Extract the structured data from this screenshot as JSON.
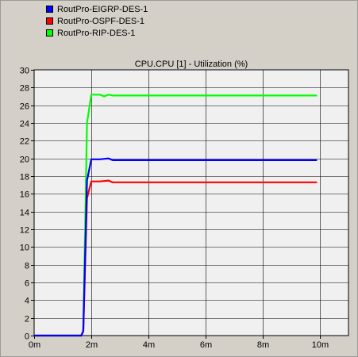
{
  "chart_data": {
    "type": "line",
    "title": "CPU.CPU [1] - Utilization (%)",
    "xlabel": "",
    "ylabel": "",
    "xlim": [
      0,
      11
    ],
    "ylim": [
      0,
      30
    ],
    "x_ticks": [
      0,
      2,
      4,
      6,
      8,
      10
    ],
    "x_tick_labels": [
      "0m",
      "2m",
      "4m",
      "6m",
      "8m",
      "10m"
    ],
    "y_ticks": [
      0,
      2,
      4,
      6,
      8,
      10,
      12,
      14,
      16,
      18,
      20,
      22,
      24,
      26,
      28,
      30
    ],
    "y_tick_labels": [
      "0",
      "2",
      "4",
      "6",
      "8",
      "10",
      "12",
      "14",
      "16",
      "18",
      "20",
      "22",
      "24",
      "26",
      "28",
      "30"
    ],
    "grid": true,
    "legend_position": "top-left, above plot",
    "series": [
      {
        "name": "RoutPro-EIGRP-DES-1",
        "color": "#0000ff",
        "x": [
          0,
          1.65,
          1.72,
          1.85,
          2.0,
          2.3,
          2.6,
          2.75,
          3.0,
          5.0,
          7.0,
          9.0,
          9.9
        ],
        "y": [
          0,
          0,
          0.5,
          17.5,
          19.9,
          19.9,
          20.0,
          19.8,
          19.8,
          19.8,
          19.8,
          19.8,
          19.8
        ]
      },
      {
        "name": "RoutPro-OSPF-DES-1",
        "color": "#ff0000",
        "x": [
          0,
          1.65,
          1.72,
          1.85,
          2.0,
          2.3,
          2.6,
          2.75,
          3.0,
          5.0,
          7.0,
          9.0,
          9.9
        ],
        "y": [
          0,
          0,
          0.5,
          15.5,
          17.4,
          17.4,
          17.5,
          17.3,
          17.3,
          17.3,
          17.3,
          17.3,
          17.3
        ]
      },
      {
        "name": "RoutPro-RIP-DES-1",
        "color": "#00ff00",
        "x": [
          0,
          1.65,
          1.72,
          1.85,
          2.0,
          2.3,
          2.45,
          2.6,
          2.75,
          3.0,
          5.0,
          7.0,
          9.0,
          9.9
        ],
        "y": [
          0,
          0,
          0.5,
          24.0,
          27.2,
          27.2,
          27.0,
          27.2,
          27.1,
          27.1,
          27.1,
          27.1,
          27.1,
          27.1
        ]
      }
    ]
  }
}
